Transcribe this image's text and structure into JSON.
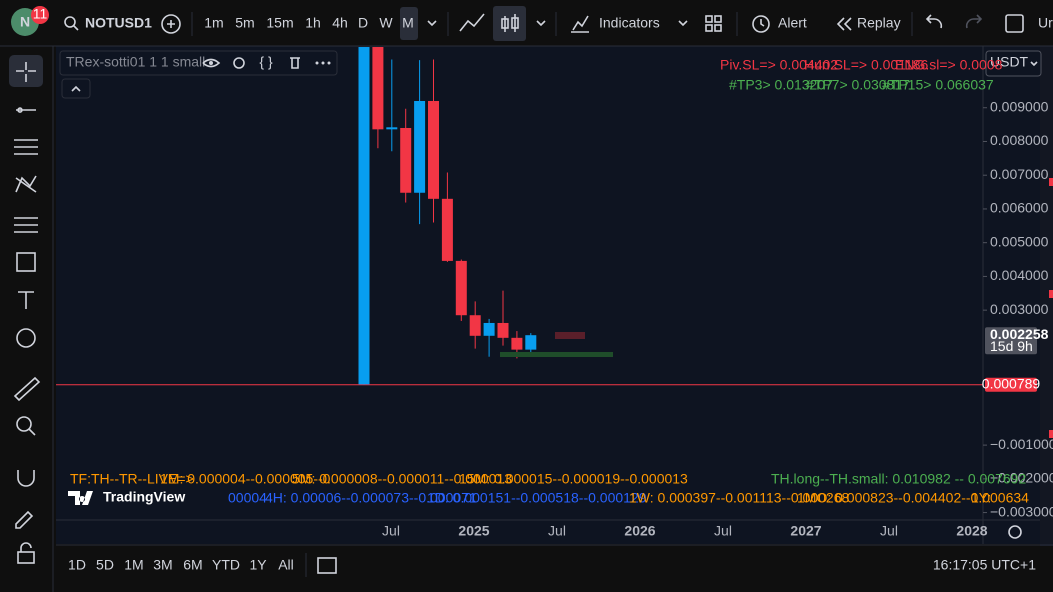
{
  "header": {
    "avatar": "N",
    "badge": "11",
    "symbol": "NOTUSD1",
    "intervals": [
      "1m",
      "5m",
      "15m",
      "1h",
      "4h",
      "D",
      "W",
      "M"
    ],
    "indicators": "Indicators",
    "alert": "Alert",
    "replay": "Replay",
    "cut_off": "Ur"
  },
  "legend": {
    "title": "TRex-sotti01 1 1 small"
  },
  "currency": "USDT",
  "overlay": {
    "red": [
      "Piv.SL=> 0.004402",
      "Hun.SL=> 0.001186",
      "ENG.sl=> 0.0008"
    ],
    "green": [
      "#TP3> 0.013207",
      "#TP7> 0.030817",
      "#TP15> 0.066037"
    ],
    "row1": [
      "TF:TH--TR--LIVE=>",
      "1M: 0.000004--0.000005--0",
      "5M: 0.000008--0.000011--0.000013",
      "15M: 0.000015--0.000019--0.000013"
    ],
    "th": "TH.long--TH.small: 0.010982 -- 0.007692",
    "row2_blue": [
      "00004",
      "4H: 0.00006--0.000073--0.000071",
      "1D: 0.000151--0.000518--0.000129"
    ],
    "row2_orange": [
      "1W: 0.000397--0.001113--0.000268",
      "1MO: 0.000823--0.004402--0.000634",
      "1Y:"
    ]
  },
  "logo": "TradingView",
  "chart_data": {
    "type": "candlestick",
    "candles": [
      {
        "open": 0.0008,
        "high": 0.0108,
        "low": 0.0008,
        "close": 0.0108
      },
      {
        "open": 0.0108,
        "high": 0.0108,
        "low": 0.0078,
        "close": 0.00836
      },
      {
        "open": 0.00836,
        "high": 0.01043,
        "low": 0.00771,
        "close": 0.00842
      },
      {
        "open": 0.0084,
        "high": 0.00897,
        "low": 0.00619,
        "close": 0.00648
      },
      {
        "open": 0.00648,
        "high": 0.01041,
        "low": 0.00555,
        "close": 0.0092
      },
      {
        "open": 0.0092,
        "high": 0.01043,
        "low": 0.0056,
        "close": 0.0063
      },
      {
        "open": 0.0063,
        "high": 0.00708,
        "low": 0.00443,
        "close": 0.00446
      },
      {
        "open": 0.00446,
        "high": 0.0045,
        "low": 0.00268,
        "close": 0.00285
      },
      {
        "open": 0.00285,
        "high": 0.00326,
        "low": 0.00186,
        "close": 0.00224
      },
      {
        "open": 0.00224,
        "high": 0.00274,
        "low": 0.00162,
        "close": 0.00262
      },
      {
        "open": 0.00262,
        "high": 0.00358,
        "low": 0.00195,
        "close": 0.00218
      },
      {
        "open": 0.00218,
        "high": 0.00238,
        "low": 0.00157,
        "close": 0.00183
      },
      {
        "open": 0.00183,
        "high": 0.00232,
        "low": 0.00174,
        "close": 0.002258
      }
    ],
    "up_color": "#089ef0",
    "down_color": "#f23645",
    "ylim": [
      -0.00322,
      0.01083
    ],
    "yticks": [
      {
        "value": 0.009,
        "label": "0.009000"
      },
      {
        "value": 0.008,
        "label": "0.008000"
      },
      {
        "value": 0.007,
        "label": "0.007000"
      },
      {
        "value": 0.006,
        "label": "0.006000"
      },
      {
        "value": 0.005,
        "label": "0.005000"
      },
      {
        "value": 0.004,
        "label": "0.004000"
      },
      {
        "value": 0.003,
        "label": "0.003000"
      },
      {
        "value": -0.001,
        "label": "−0.001000"
      },
      {
        "value": -0.002,
        "label": "−0.002000"
      },
      {
        "value": -0.003,
        "label": "−0.003000"
      }
    ],
    "x_labels": [
      "Jul",
      "2025",
      "Jul",
      "2026",
      "Jul",
      "2027",
      "Jul",
      "2028"
    ],
    "last_price": {
      "value": 0.002258,
      "label": "0.002258",
      "countdown": "15d 9h"
    },
    "price_line": {
      "value": 0.000789,
      "label": "0.000789"
    }
  },
  "footer": {
    "ranges": [
      "1D",
      "5D",
      "1M",
      "3M",
      "6M",
      "YTD",
      "1Y",
      "All"
    ],
    "time": "16:17:05 UTC+1"
  }
}
